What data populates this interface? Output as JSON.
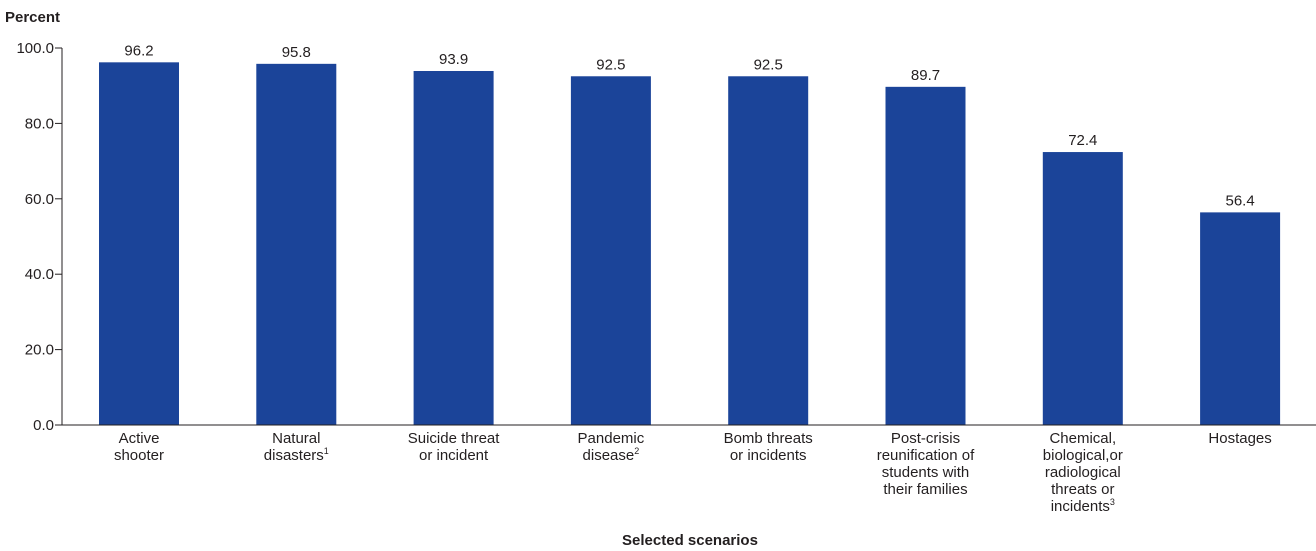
{
  "chart_data": {
    "type": "bar",
    "ylabel": "Percent",
    "xlabel": "Selected scenarios",
    "ylim": [
      0,
      100
    ],
    "yticks": [
      "0.0",
      "20.0",
      "40.0",
      "60.0",
      "80.0",
      "100.0"
    ],
    "categories": [
      {
        "lines": [
          "Active",
          "shooter"
        ],
        "footnote": ""
      },
      {
        "lines": [
          "Natural",
          "disasters"
        ],
        "footnote": "1"
      },
      {
        "lines": [
          "Suicide threat",
          "or incident"
        ],
        "footnote": ""
      },
      {
        "lines": [
          "Pandemic",
          "disease"
        ],
        "footnote": "2"
      },
      {
        "lines": [
          "Bomb threats",
          "or incidents"
        ],
        "footnote": ""
      },
      {
        "lines": [
          "Post-crisis",
          "reunification of",
          "students with",
          "their families"
        ],
        "footnote": ""
      },
      {
        "lines": [
          "Chemical,",
          "biological,or",
          "radiological",
          "threats or",
          "incidents"
        ],
        "footnote": "3"
      },
      {
        "lines": [
          "Hostages"
        ],
        "footnote": ""
      }
    ],
    "values": [
      96.2,
      95.8,
      93.9,
      92.5,
      92.5,
      89.7,
      72.4,
      56.4
    ],
    "value_labels": [
      "96.2",
      "95.8",
      "93.9",
      "92.5",
      "92.5",
      "89.7",
      "72.4",
      "56.4"
    ],
    "bar_color": "#1b4499",
    "axis_color": "#231f20",
    "grid": false
  }
}
